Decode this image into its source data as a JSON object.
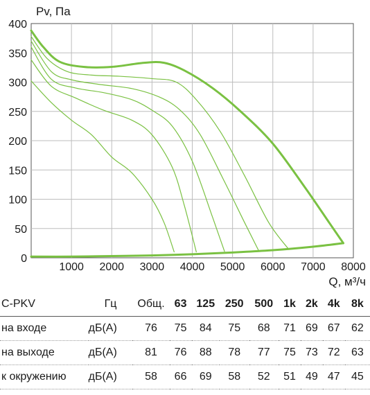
{
  "chart_data": {
    "type": "line",
    "ylabel": "Pv, Па",
    "xlabel": "Q, м³/ч",
    "xlim": [
      0,
      8000
    ],
    "ylim": [
      0,
      400
    ],
    "xticks": [
      1000,
      2000,
      3000,
      4000,
      5000,
      6000,
      7000,
      8000
    ],
    "yticks": [
      0,
      50,
      100,
      150,
      200,
      250,
      300,
      350,
      400
    ],
    "grid": true,
    "line_color": "#7ac142",
    "curves": [
      {
        "role": "max",
        "points": [
          [
            0,
            388
          ],
          [
            300,
            360
          ],
          [
            700,
            335
          ],
          [
            1300,
            326
          ],
          [
            2000,
            326
          ],
          [
            2800,
            333
          ],
          [
            3300,
            333
          ],
          [
            3800,
            320
          ],
          [
            4500,
            290
          ],
          [
            5200,
            250
          ],
          [
            6000,
            195
          ],
          [
            6800,
            120
          ],
          [
            7400,
            60
          ],
          [
            7750,
            25
          ]
        ]
      },
      {
        "role": "speed",
        "points": [
          [
            0,
            378
          ],
          [
            400,
            340
          ],
          [
            900,
            318
          ],
          [
            1500,
            312
          ],
          [
            2200,
            310
          ],
          [
            3000,
            306
          ],
          [
            3600,
            300
          ],
          [
            4100,
            270
          ],
          [
            4700,
            215
          ],
          [
            5300,
            140
          ],
          [
            5900,
            60
          ],
          [
            6400,
            14
          ]
        ]
      },
      {
        "role": "speed",
        "points": [
          [
            0,
            370
          ],
          [
            500,
            318
          ],
          [
            1000,
            304
          ],
          [
            1700,
            296
          ],
          [
            2500,
            289
          ],
          [
            3200,
            274
          ],
          [
            3700,
            252
          ],
          [
            4200,
            210
          ],
          [
            4800,
            130
          ],
          [
            5300,
            60
          ],
          [
            5650,
            12
          ]
        ]
      },
      {
        "role": "speed",
        "points": [
          [
            0,
            360
          ],
          [
            500,
            305
          ],
          [
            1100,
            290
          ],
          [
            1800,
            282
          ],
          [
            2500,
            270
          ],
          [
            3000,
            252
          ],
          [
            3500,
            225
          ],
          [
            4000,
            165
          ],
          [
            4500,
            70
          ],
          [
            4800,
            11
          ]
        ]
      },
      {
        "role": "speed",
        "points": [
          [
            0,
            338
          ],
          [
            500,
            293
          ],
          [
            1100,
            273
          ],
          [
            1800,
            252
          ],
          [
            2500,
            235
          ],
          [
            3000,
            210
          ],
          [
            3500,
            155
          ],
          [
            3800,
            90
          ],
          [
            4100,
            10
          ]
        ]
      },
      {
        "role": "speed",
        "points": [
          [
            0,
            302
          ],
          [
            500,
            265
          ],
          [
            1000,
            235
          ],
          [
            1500,
            210
          ],
          [
            2000,
            172
          ],
          [
            2500,
            145
          ],
          [
            3000,
            100
          ],
          [
            3300,
            60
          ],
          [
            3550,
            10
          ]
        ]
      },
      {
        "role": "min",
        "points": [
          [
            0,
            2
          ],
          [
            1000,
            2
          ],
          [
            2000,
            3
          ],
          [
            3000,
            4
          ],
          [
            4000,
            6
          ],
          [
            5000,
            9
          ],
          [
            6000,
            13
          ],
          [
            7000,
            19
          ],
          [
            7750,
            25
          ]
        ]
      }
    ]
  },
  "table": {
    "headers": [
      "C-PKV",
      "Гц",
      "Общ.",
      "63",
      "125",
      "250",
      "500",
      "1k",
      "2k",
      "4k",
      "8k"
    ],
    "rows": [
      {
        "label": "на входе",
        "unit": "дБ(А)",
        "values": [
          "76",
          "75",
          "84",
          "75",
          "68",
          "71",
          "69",
          "67",
          "62"
        ]
      },
      {
        "label": "на выходе",
        "unit": "дБ(А)",
        "values": [
          "81",
          "76",
          "88",
          "78",
          "77",
          "75",
          "73",
          "72",
          "63"
        ]
      },
      {
        "label": "к окружению",
        "unit": "дБ(А)",
        "values": [
          "58",
          "66",
          "69",
          "58",
          "52",
          "51",
          "49",
          "47",
          "45"
        ]
      }
    ]
  }
}
